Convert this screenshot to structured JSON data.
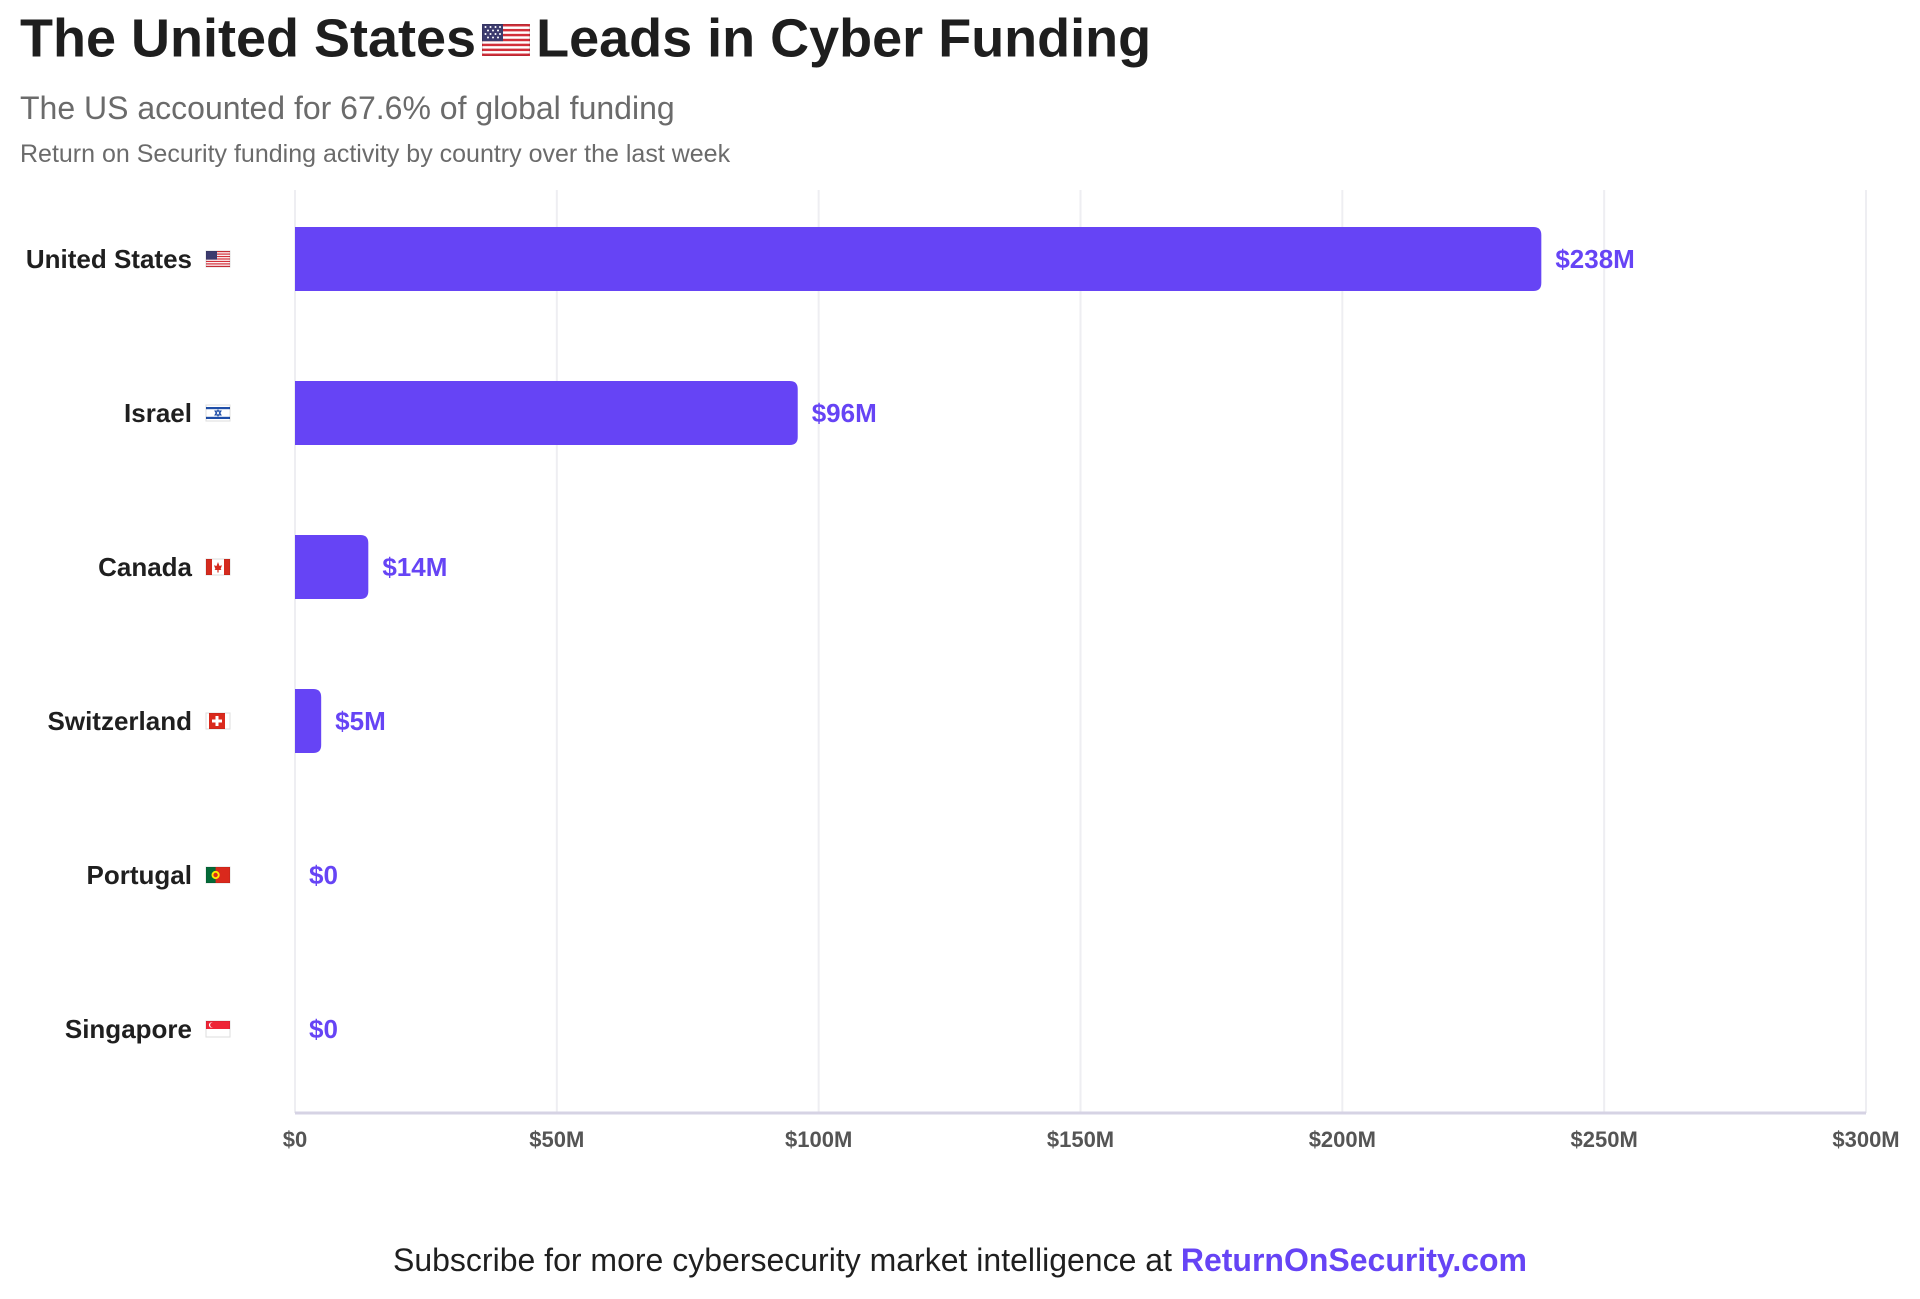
{
  "header": {
    "title_before": "The United States",
    "title_flag": "us-flag-icon",
    "title_after": "Leads in Cyber Funding",
    "subtitle": "The US accounted for 67.6% of global funding",
    "description": "Return on Security funding activity by country over the last week"
  },
  "footer": {
    "text": "Subscribe for more cybersecurity market intelligence at",
    "link": "ReturnOnSecurity.com"
  },
  "colors": {
    "bar": "#6644f5",
    "label": "#6644f5",
    "grid": "#eeeef2",
    "axis": "#d6d3e4",
    "tick": "#555555",
    "category": "#1f1f1f"
  },
  "chart_data": {
    "type": "bar",
    "orientation": "horizontal",
    "title": "The United States Leads in Cyber Funding",
    "subtitle": "The US accounted for 67.6% of global funding",
    "categories": [
      "United States",
      "Israel",
      "Canada",
      "Switzerland",
      "Portugal",
      "Singapore"
    ],
    "flags": [
      "us-flag-icon",
      "israel-flag-icon",
      "canada-flag-icon",
      "switzerland-flag-icon",
      "portugal-flag-icon",
      "singapore-flag-icon"
    ],
    "values": [
      238,
      96,
      14,
      5,
      0,
      0
    ],
    "value_labels": [
      "$238M",
      "$96M",
      "$14M",
      "$5M",
      "$0",
      "$0"
    ],
    "unit": "$M",
    "xlim": [
      0,
      300
    ],
    "xticks": [
      0,
      50,
      100,
      150,
      200,
      250,
      300
    ],
    "xtick_labels": [
      "$0",
      "$50M",
      "$100M",
      "$150M",
      "$200M",
      "$250M",
      "$300M"
    ],
    "grid": "vertical",
    "legend": "none"
  }
}
